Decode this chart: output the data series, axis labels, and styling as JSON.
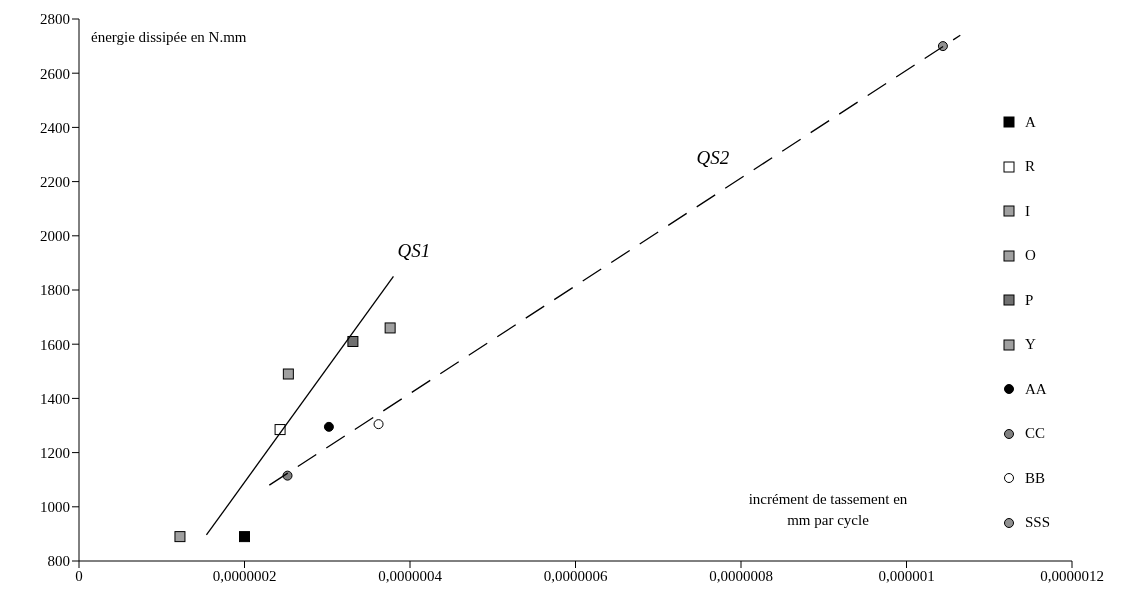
{
  "chart_data": {
    "type": "scatter",
    "xlabel": "incrément de tassement en mm par cycle",
    "ylabel": "énergie dissipée en N.mm",
    "xlim": [
      0,
      1.2e-06
    ],
    "ylim": [
      800,
      2800
    ],
    "xticks": [
      0,
      {
        "value": 2e-07,
        "label": "0,0000002"
      },
      {
        "value": 4e-07,
        "label": "0,0000004"
      },
      {
        "value": 6e-07,
        "label": "0,0000006"
      },
      {
        "value": 8e-07,
        "label": "0,0000008"
      },
      {
        "value": 1e-06,
        "label": "0,000001"
      },
      {
        "value": 1.2e-06,
        "label": "0,0000012"
      }
    ],
    "yticks": [
      800,
      1000,
      1200,
      1400,
      1600,
      1800,
      2000,
      2200,
      2400,
      2600,
      2800
    ],
    "grid": false,
    "legend": "right",
    "series": [
      {
        "name": "A",
        "color": "#000000",
        "marker": "square",
        "x": [
          2e-07
        ],
        "values": [
          890
        ]
      },
      {
        "name": "R",
        "color": "#ffffff",
        "marker": "square",
        "x": [
          2.43e-07
        ],
        "values": [
          1285
        ]
      },
      {
        "name": "I",
        "color": "#a0a0a0",
        "marker": "square",
        "x": [
          1.22e-07
        ],
        "values": [
          890
        ]
      },
      {
        "name": "O",
        "color": "#a0a0a0",
        "marker": "square",
        "x": [
          2.53e-07
        ],
        "values": [
          1490
        ]
      },
      {
        "name": "P",
        "color": "#707070",
        "marker": "square",
        "x": [
          3.31e-07
        ],
        "values": [
          1610
        ]
      },
      {
        "name": "Y",
        "color": "#a0a0a0",
        "marker": "square",
        "x": [
          3.76e-07
        ],
        "values": [
          1660
        ]
      },
      {
        "name": "AA",
        "color": "#000000",
        "marker": "circle",
        "x": [
          3.02e-07
        ],
        "values": [
          1295
        ]
      },
      {
        "name": "CC",
        "color": "#808080",
        "marker": "circle",
        "x": [
          2.52e-07
        ],
        "values": [
          1115
        ]
      },
      {
        "name": "BB",
        "color": "#ffffff",
        "marker": "circle",
        "x": [
          3.62e-07
        ],
        "values": [
          1305
        ]
      },
      {
        "name": "SSS",
        "color": "#909090",
        "marker": "circle",
        "x": [
          1.044e-06
        ],
        "values": [
          2700
        ]
      },
      {
        "type": "line",
        "name": "QS1",
        "color": "#000000",
        "marker": "none",
        "line_style": "solid",
        "x": [
          1.54e-07,
          3.8e-07
        ],
        "values": [
          896,
          1850
        ]
      },
      {
        "type": "line",
        "name": "QS2",
        "color": "#000000",
        "marker": "none",
        "line_style": "dashed",
        "x": [
          2.3e-07,
          1.065e-06
        ],
        "values": [
          1080,
          2740
        ]
      }
    ]
  }
}
